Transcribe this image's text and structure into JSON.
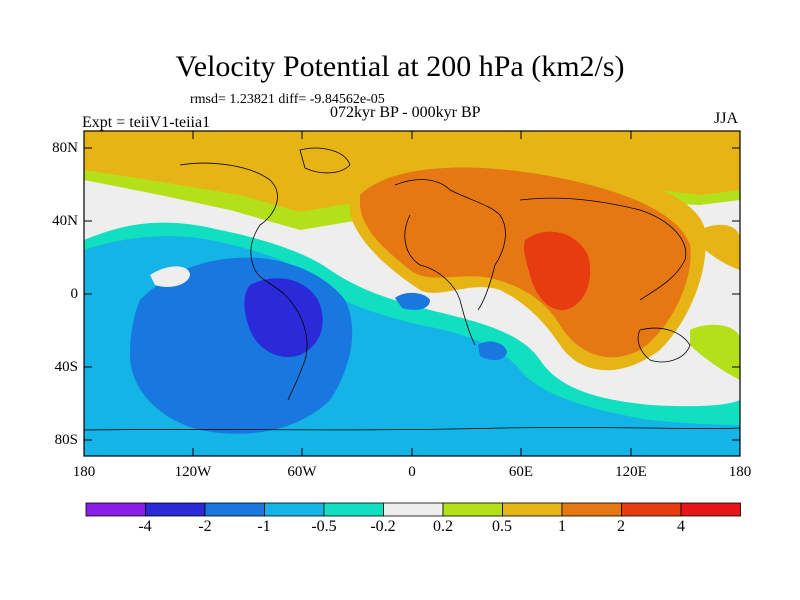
{
  "figure": {
    "title": "Velocity Potential at 200 hPa (km2/s)",
    "stats": "rmsd= 1.23821 diff= -9.84562e-05",
    "period": "072kyr BP - 000kyr BP",
    "experiment": "Expt = teiiV1-teiia1",
    "season": "JJA"
  },
  "axes": {
    "lat_labels": [
      "80N",
      "40N",
      "0",
      "40S",
      "80S"
    ],
    "lon_labels": [
      "180",
      "120W",
      "60W",
      "0",
      "60E",
      "120E",
      "180"
    ]
  },
  "colorbar": {
    "labels": [
      "-4",
      "-2",
      "-1",
      "-0.5",
      "-0.2",
      "0.2",
      "0.5",
      "1",
      "2",
      "4"
    ],
    "colors": [
      "#8a1ee8",
      "#2a2ad8",
      "#1878e0",
      "#14b4e6",
      "#10e0c0",
      "#eeeeee",
      "#b4e01a",
      "#e6b414",
      "#e67814",
      "#e63c10",
      "#e61414"
    ]
  }
}
